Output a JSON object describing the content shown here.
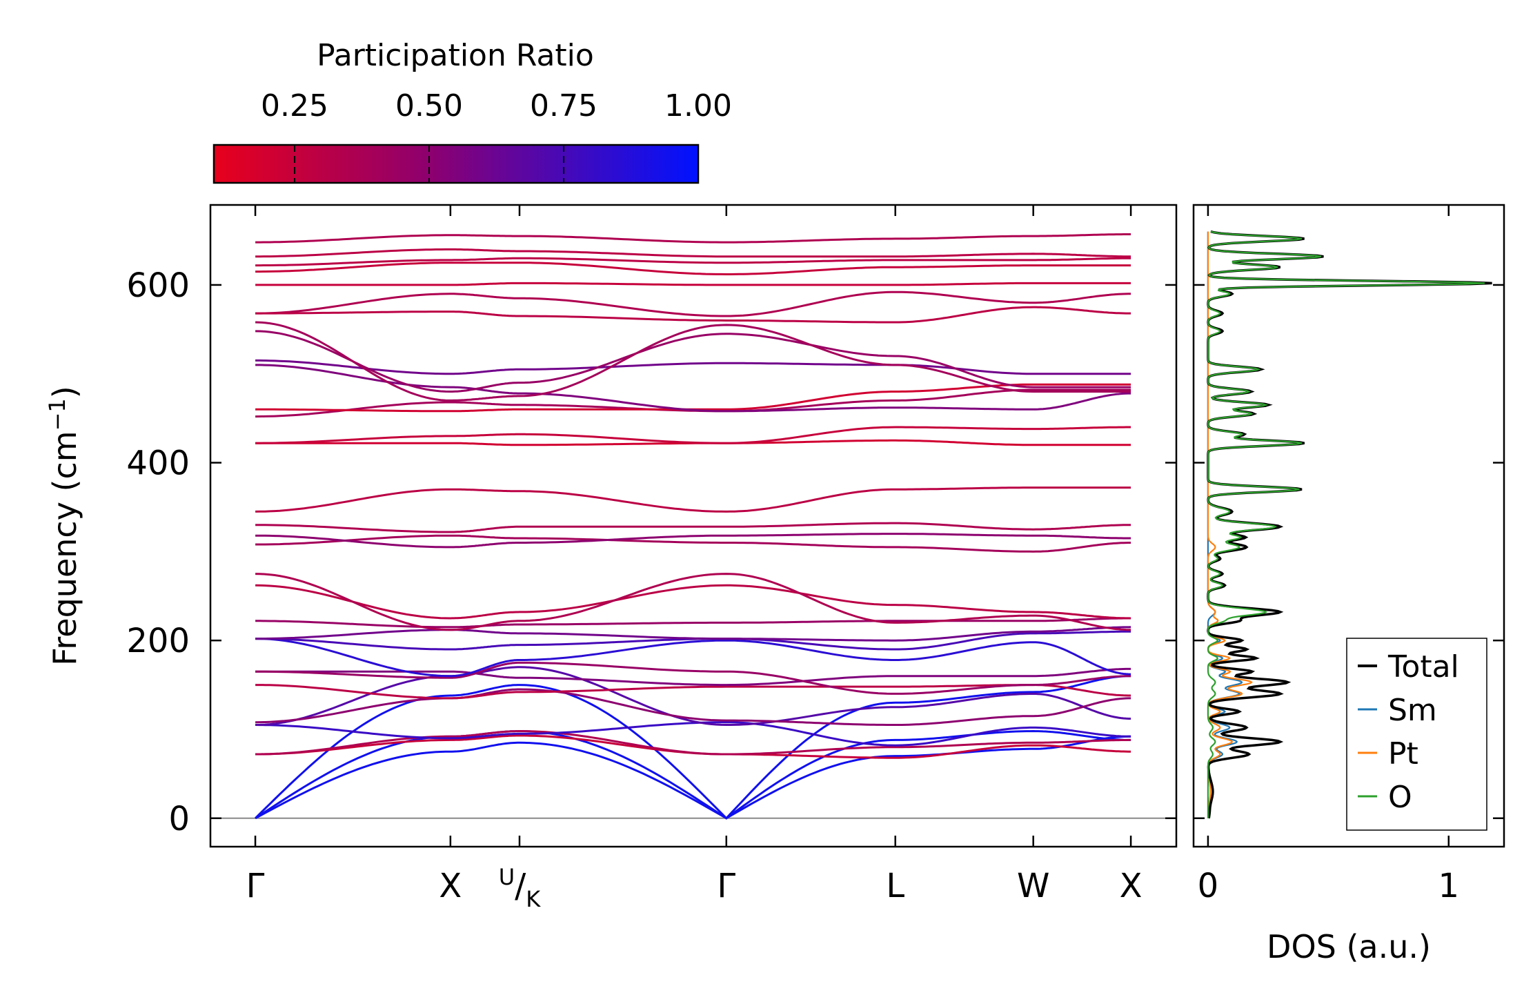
{
  "chart_data": [
    {
      "type": "line",
      "subtype": "phonon-band-structure",
      "title": "",
      "ylabel": "Frequency (cm",
      "ylabel_sup": "−1",
      "ylabel_tail": ")",
      "ylim": [
        -32,
        690
      ],
      "y_ticks": [
        0,
        200,
        400,
        600
      ],
      "x_path": [
        {
          "label": "Γ",
          "pos": 0.0
        },
        {
          "label": "X",
          "pos": 1.0
        },
        {
          "label": "U/K",
          "pos": 1.354
        },
        {
          "label": "Γ",
          "pos": 2.414
        },
        {
          "label": "L",
          "pos": 3.28
        },
        {
          "label": "W",
          "pos": 3.987
        },
        {
          "label": "X",
          "pos": 4.487
        }
      ],
      "kink_label": {
        "sup": "U",
        "sub": "K"
      },
      "xlim": [
        -0.23,
        4.72
      ],
      "colorbar": {
        "label": "Participation Ratio",
        "ticks": [
          0.25,
          0.5,
          0.75,
          1.0
        ],
        "tick_labels": [
          "0.25",
          "0.50",
          "0.75",
          "1.00"
        ],
        "range": [
          0.1,
          1.0
        ],
        "cmap_low": "#e8001c",
        "cmap_mid": "#8c0070",
        "cmap_high": "#0012ff"
      },
      "acoustic_color": "#1010ee",
      "zero_line_color": "#888888",
      "bands": [
        {
          "f": [
            0,
            75,
            85,
            0,
            70,
            78,
            92
          ],
          "pr": 0.97
        },
        {
          "f": [
            0,
            92,
            98,
            0,
            88,
            98,
            88
          ],
          "pr": 0.95
        },
        {
          "f": [
            0,
            138,
            150,
            0,
            130,
            142,
            160
          ],
          "pr": 0.92
        },
        {
          "f": [
            72,
            88,
            93,
            72,
            68,
            82,
            75
          ],
          "pr": 0.25
        },
        {
          "f": [
            72,
            92,
            98,
            72,
            80,
            85,
            88
          ],
          "pr": 0.35
        },
        {
          "f": [
            105,
            90,
            95,
            108,
            82,
            102,
            92
          ],
          "pr": 0.8
        },
        {
          "f": [
            105,
            160,
            170,
            105,
            125,
            140,
            112
          ],
          "pr": 0.7
        },
        {
          "f": [
            108,
            135,
            145,
            110,
            105,
            115,
            135
          ],
          "pr": 0.5
        },
        {
          "f": [
            150,
            135,
            142,
            148,
            148,
            150,
            138
          ],
          "pr": 0.3
        },
        {
          "f": [
            165,
            165,
            158,
            150,
            160,
            160,
            168
          ],
          "pr": 0.55
        },
        {
          "f": [
            165,
            158,
            175,
            165,
            140,
            150,
            160
          ],
          "pr": 0.45
        },
        {
          "f": [
            202,
            160,
            178,
            200,
            178,
            198,
            162
          ],
          "pr": 0.85
        },
        {
          "f": [
            202,
            190,
            195,
            202,
            190,
            208,
            210
          ],
          "pr": 0.75
        },
        {
          "f": [
            202,
            212,
            208,
            202,
            200,
            210,
            215
          ],
          "pr": 0.6
        },
        {
          "f": [
            222,
            215,
            218,
            220,
            222,
            222,
            225
          ],
          "pr": 0.45
        },
        {
          "f": [
            262,
            225,
            232,
            262,
            240,
            232,
            225
          ],
          "pr": 0.3
        },
        {
          "f": [
            275,
            212,
            222,
            275,
            220,
            228,
            212
          ],
          "pr": 0.35
        },
        {
          "f": [
            308,
            318,
            315,
            310,
            305,
            300,
            310
          ],
          "pr": 0.4
        },
        {
          "f": [
            318,
            305,
            310,
            318,
            320,
            318,
            315
          ],
          "pr": 0.5
        },
        {
          "f": [
            330,
            322,
            328,
            328,
            332,
            325,
            330
          ],
          "pr": 0.35
        },
        {
          "f": [
            345,
            370,
            368,
            345,
            370,
            372,
            372
          ],
          "pr": 0.3
        },
        {
          "f": [
            422,
            422,
            420,
            422,
            425,
            420,
            420
          ],
          "pr": 0.2
        },
        {
          "f": [
            422,
            430,
            432,
            422,
            440,
            438,
            440
          ],
          "pr": 0.25
        },
        {
          "f": [
            452,
            468,
            465,
            458,
            470,
            482,
            482
          ],
          "pr": 0.4
        },
        {
          "f": [
            460,
            458,
            460,
            460,
            480,
            488,
            488
          ],
          "pr": 0.2
        },
        {
          "f": [
            510,
            485,
            478,
            458,
            462,
            460,
            478
          ],
          "pr": 0.55
        },
        {
          "f": [
            515,
            500,
            505,
            512,
            510,
            500,
            500
          ],
          "pr": 0.6
        },
        {
          "f": [
            548,
            480,
            490,
            545,
            520,
            485,
            485
          ],
          "pr": 0.45
        },
        {
          "f": [
            558,
            470,
            475,
            555,
            510,
            480,
            480
          ],
          "pr": 0.4
        },
        {
          "f": [
            568,
            590,
            585,
            565,
            592,
            580,
            590
          ],
          "pr": 0.35
        },
        {
          "f": [
            568,
            570,
            565,
            560,
            558,
            575,
            568
          ],
          "pr": 0.3
        },
        {
          "f": [
            600,
            600,
            602,
            600,
            600,
            602,
            602
          ],
          "pr": 0.25
        },
        {
          "f": [
            615,
            625,
            625,
            612,
            620,
            622,
            622
          ],
          "pr": 0.25
        },
        {
          "f": [
            622,
            628,
            630,
            625,
            628,
            628,
            630
          ],
          "pr": 0.3
        },
        {
          "f": [
            632,
            640,
            638,
            632,
            632,
            635,
            632
          ],
          "pr": 0.3
        },
        {
          "f": [
            648,
            656,
            655,
            648,
            652,
            655,
            657
          ],
          "pr": 0.35
        }
      ]
    },
    {
      "type": "line",
      "subtype": "density-of-states",
      "xlabel": "DOS (a.u.)",
      "xlim": [
        -0.06,
        1.23
      ],
      "x_ticks": [
        0,
        1
      ],
      "x_tick_labels": [
        "0",
        "1"
      ],
      "legend_position": "bottom-right",
      "series": [
        {
          "name": "Total",
          "color": "#000000",
          "peaks": [
            [
              5,
              0.004,
              6
            ],
            [
              30,
              0.02,
              12
            ],
            [
              72,
              0.17,
              4
            ],
            [
              86,
              0.3,
              4
            ],
            [
              102,
              0.16,
              4
            ],
            [
              120,
              0.13,
              3
            ],
            [
              140,
              0.3,
              4
            ],
            [
              153,
              0.33,
              4
            ],
            [
              165,
              0.18,
              3
            ],
            [
              180,
              0.2,
              3
            ],
            [
              190,
              0.16,
              3
            ],
            [
              200,
              0.14,
              3
            ],
            [
              222,
              0.12,
              3
            ],
            [
              232,
              0.3,
              4
            ],
            [
              262,
              0.07,
              3
            ],
            [
              275,
              0.06,
              3
            ],
            [
              292,
              0.05,
              3
            ],
            [
              305,
              0.16,
              4
            ],
            [
              316,
              0.15,
              3
            ],
            [
              328,
              0.3,
              4
            ],
            [
              345,
              0.1,
              4
            ],
            [
              370,
              0.39,
              3
            ],
            [
              422,
              0.4,
              3
            ],
            [
              432,
              0.15,
              3
            ],
            [
              455,
              0.19,
              3
            ],
            [
              465,
              0.25,
              3
            ],
            [
              480,
              0.18,
              3
            ],
            [
              505,
              0.22,
              3
            ],
            [
              548,
              0.06,
              3
            ],
            [
              568,
              0.06,
              3
            ],
            [
              590,
              0.1,
              3
            ],
            [
              602,
              1.18,
              2.5
            ],
            [
              620,
              0.3,
              3
            ],
            [
              632,
              0.48,
              3
            ],
            [
              652,
              0.4,
              3
            ]
          ]
        },
        {
          "name": "Sm",
          "color": "#1f77b4",
          "peaks": [
            [
              5,
              0.002,
              6
            ],
            [
              30,
              0.01,
              12
            ],
            [
              72,
              0.06,
              4
            ],
            [
              86,
              0.12,
              4
            ],
            [
              102,
              0.09,
              4
            ],
            [
              120,
              0.07,
              3
            ],
            [
              140,
              0.13,
              4
            ],
            [
              153,
              0.14,
              4
            ],
            [
              165,
              0.07,
              3
            ],
            [
              180,
              0.06,
              3
            ],
            [
              200,
              0.05,
              3
            ],
            [
              232,
              0.03,
              4
            ]
          ]
        },
        {
          "name": "Pt",
          "color": "#ff7f0e",
          "peaks": [
            [
              5,
              0.002,
              6
            ],
            [
              30,
              0.01,
              12
            ],
            [
              72,
              0.05,
              4
            ],
            [
              86,
              0.1,
              4
            ],
            [
              102,
              0.05,
              4
            ],
            [
              120,
              0.05,
              3
            ],
            [
              140,
              0.14,
              4
            ],
            [
              153,
              0.18,
              4
            ],
            [
              165,
              0.09,
              3
            ],
            [
              180,
              0.09,
              3
            ],
            [
              200,
              0.07,
              3
            ],
            [
              222,
              0.04,
              3
            ],
            [
              232,
              0.03,
              4
            ],
            [
              305,
              0.03,
              4
            ]
          ]
        },
        {
          "name": "O",
          "color": "#2ca02c",
          "peaks": [
            [
              72,
              0.02,
              4
            ],
            [
              86,
              0.03,
              4
            ],
            [
              102,
              0.02,
              4
            ],
            [
              140,
              0.03,
              4
            ],
            [
              153,
              0.03,
              4
            ],
            [
              180,
              0.04,
              3
            ],
            [
              200,
              0.04,
              3
            ],
            [
              222,
              0.06,
              3
            ],
            [
              232,
              0.24,
              4
            ],
            [
              262,
              0.06,
              3
            ],
            [
              275,
              0.05,
              3
            ],
            [
              292,
              0.04,
              3
            ],
            [
              305,
              0.13,
              4
            ],
            [
              316,
              0.13,
              3
            ],
            [
              328,
              0.28,
              4
            ],
            [
              345,
              0.09,
              4
            ],
            [
              370,
              0.38,
              3
            ],
            [
              422,
              0.39,
              3
            ],
            [
              432,
              0.14,
              3
            ],
            [
              455,
              0.18,
              3
            ],
            [
              465,
              0.24,
              3
            ],
            [
              480,
              0.17,
              3
            ],
            [
              505,
              0.21,
              3
            ],
            [
              548,
              0.05,
              3
            ],
            [
              568,
              0.05,
              3
            ],
            [
              590,
              0.09,
              3
            ],
            [
              602,
              1.15,
              2.5
            ],
            [
              620,
              0.29,
              3
            ],
            [
              632,
              0.47,
              3
            ],
            [
              652,
              0.39,
              3
            ]
          ]
        }
      ]
    }
  ]
}
